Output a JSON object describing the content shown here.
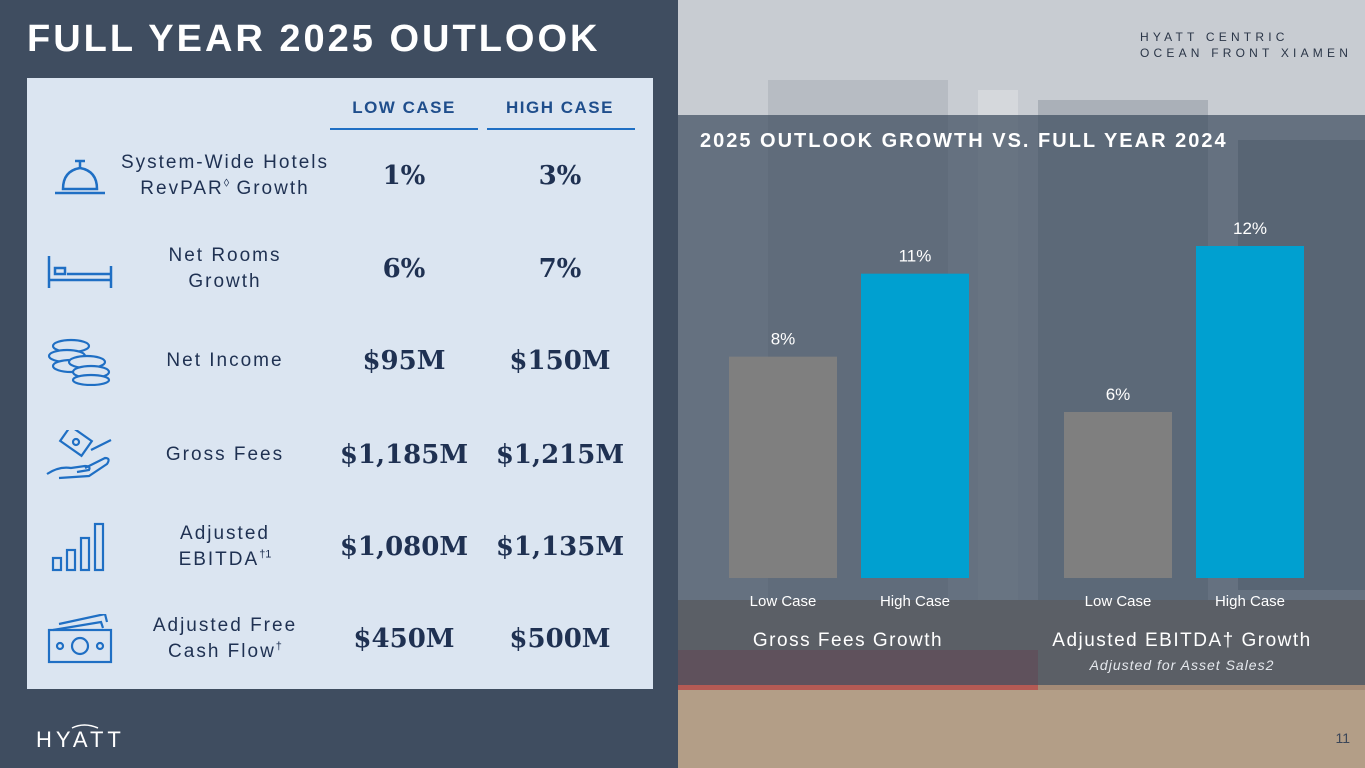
{
  "title": "FULL YEAR 2025 OUTLOOK",
  "hotel": {
    "line1": "HYATT CENTRIC",
    "line2": "OCEAN FRONT XIAMEN"
  },
  "table": {
    "col_low": "LOW CASE",
    "col_high": "HIGH CASE",
    "rows": [
      {
        "label_line1": "System-Wide Hotels",
        "label_line2": "RevPAR",
        "label_sup": "◊",
        "label_tail": " Growth",
        "low": "1%",
        "high": "3%",
        "icon": "service-bell-icon"
      },
      {
        "label_line1": "Net Rooms",
        "label_line2": "Growth",
        "low": "6%",
        "high": "7%",
        "icon": "bed-icon"
      },
      {
        "label_line1": "Net Income",
        "low": "$95M",
        "high": "$150M",
        "icon": "coins-icon"
      },
      {
        "label_line1": "Gross Fees",
        "low": "$1,185M",
        "high": "$1,215M",
        "icon": "money-hand-icon"
      },
      {
        "label_line1": "Adjusted",
        "label_line2": "EBITDA",
        "label_sup": "†1",
        "low": "$1,080M",
        "high": "$1,135M",
        "icon": "bar-chart-icon"
      },
      {
        "label_line1": "Adjusted Free",
        "label_line2": "Cash Flow",
        "label_sup": "†",
        "low": "$450M",
        "high": "$500M",
        "icon": "banknotes-icon"
      }
    ]
  },
  "logo_text": "HYATT",
  "page_number": "11",
  "colors": {
    "low": "#7f7f7f",
    "high": "#00a0d0",
    "navy": "#1f3152",
    "accent": "#1f6fc4"
  },
  "chart_data": {
    "type": "bar",
    "title": "2025 OUTLOOK GROWTH VS. FULL YEAR 2024",
    "groups": [
      {
        "name": "Gross Fees Growth",
        "subtitle": "",
        "categories": [
          "Low Case",
          "High Case"
        ],
        "values": [
          8,
          11
        ],
        "labels": [
          "8%",
          "11%"
        ]
      },
      {
        "name": "Adjusted EBITDA† Growth",
        "subtitle": "Adjusted for Asset Sales2",
        "categories": [
          "Low Case",
          "High Case"
        ],
        "values": [
          6,
          12
        ],
        "labels": [
          "6%",
          "12%"
        ]
      }
    ],
    "ylim": [
      0,
      12
    ],
    "grid": false
  }
}
